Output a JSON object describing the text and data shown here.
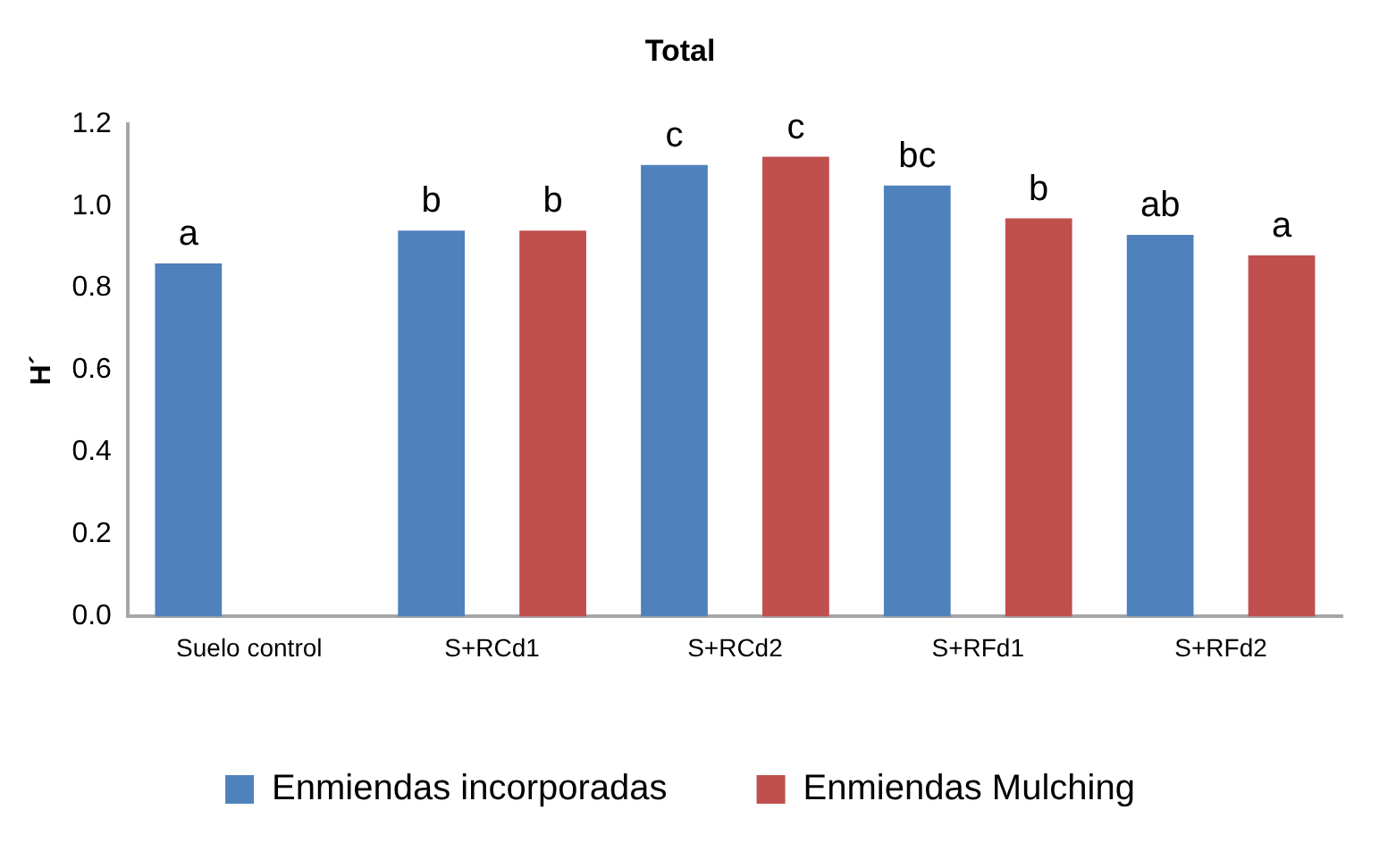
{
  "chart_data": {
    "type": "bar",
    "title": "Total",
    "ylabel": "H´",
    "categories": [
      "Suelo control",
      "S+RCd1",
      "S+RCd2",
      "S+RFd1",
      "S+RFd2"
    ],
    "series": [
      {
        "name": "Enmiendas incorporadas",
        "color": "#4f81bd",
        "values": [
          0.86,
          0.94,
          1.1,
          1.05,
          0.93
        ],
        "value_labels": [
          "a",
          "b",
          "c",
          "bc",
          "ab"
        ]
      },
      {
        "name": "Enmiendas Mulching",
        "color": "#c0504d",
        "values": [
          null,
          0.94,
          1.12,
          0.97,
          0.88
        ],
        "value_labels": [
          null,
          "b",
          "c",
          "b",
          "a"
        ]
      }
    ],
    "ylim": [
      0,
      1.2
    ],
    "yticks": [
      {
        "value": 0,
        "label": "0.0"
      },
      0.2,
      0.4,
      0.6,
      0.8,
      {
        "value": 1,
        "label": "1.0"
      },
      1.2
    ],
    "grid": false,
    "legend": "bottom"
  }
}
